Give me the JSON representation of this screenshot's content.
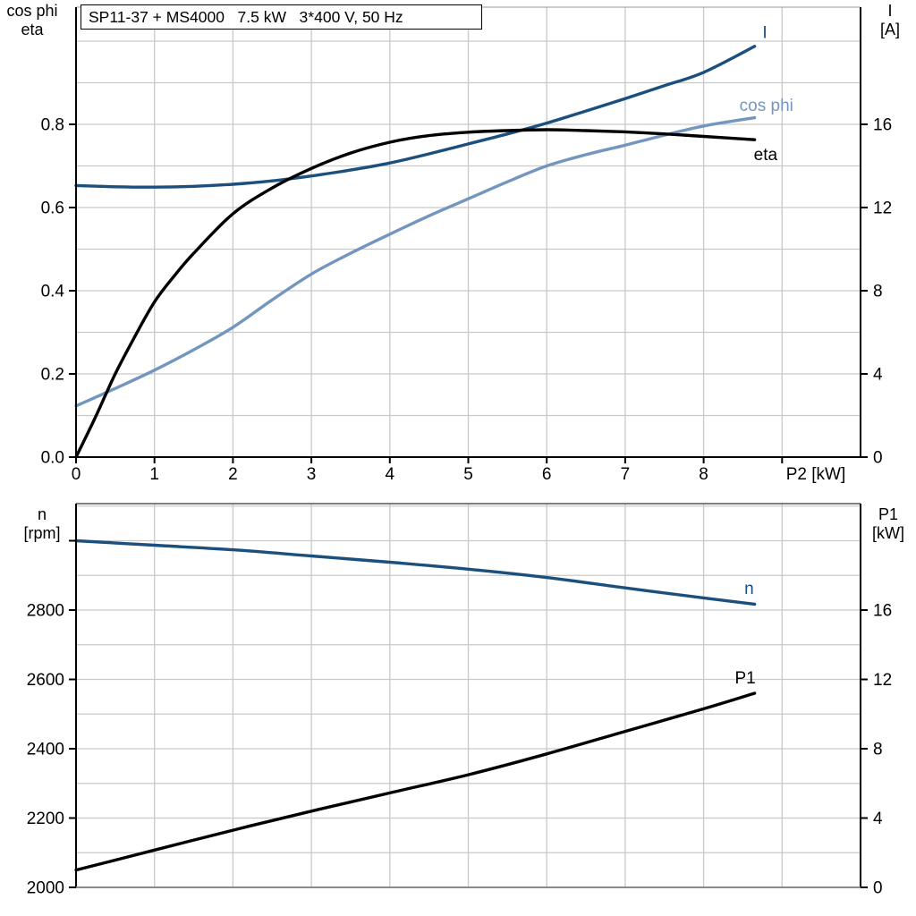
{
  "chart_data": [
    {
      "type": "line",
      "title": "SP11-37 + MS4000   7.5 kW   3*400 V, 50 Hz",
      "x": {
        "label": "P2 [kW]",
        "min": 0,
        "max": 10,
        "tick_values": [
          0,
          1,
          2,
          3,
          4,
          5,
          6,
          7,
          8
        ],
        "tick_labels": [
          "0",
          "1",
          "2",
          "3",
          "4",
          "5",
          "6",
          "7",
          "8"
        ],
        "unlabeled_ticks": [
          9
        ],
        "grid_step": 1
      },
      "y_left": {
        "unit_lines": [
          "cos phi",
          "eta"
        ],
        "min": 0,
        "max": 1.08,
        "tick_values": [
          0,
          0.2,
          0.4,
          0.6,
          0.8
        ],
        "tick_labels": [
          "0.0",
          "0.2",
          "0.4",
          "0.6",
          "0.8"
        ],
        "grid_step": 0.1
      },
      "y_right": {
        "unit_lines": [
          "I",
          "[A]"
        ],
        "min": 0,
        "max": 21.6,
        "tick_values": [
          0,
          4,
          8,
          12,
          16
        ],
        "tick_labels": [
          "0",
          "4",
          "8",
          "12",
          "16"
        ]
      },
      "grid": true,
      "legend_position": "inline-curve-labels",
      "series": [
        {
          "name": "I",
          "axis": "right",
          "color": "#1b4f7d",
          "label": "I",
          "label_pos": [
            8.78,
            20.4
          ],
          "points": [
            [
              0,
              13.06
            ],
            [
              0.5,
              13.0
            ],
            [
              1,
              12.98
            ],
            [
              1.5,
              13.02
            ],
            [
              2,
              13.12
            ],
            [
              2.5,
              13.28
            ],
            [
              3,
              13.52
            ],
            [
              3.5,
              13.8
            ],
            [
              4,
              14.14
            ],
            [
              4.5,
              14.58
            ],
            [
              5,
              15.06
            ],
            [
              5.5,
              15.54
            ],
            [
              6,
              16.06
            ],
            [
              6.5,
              16.64
            ],
            [
              7,
              17.24
            ],
            [
              7.5,
              17.86
            ],
            [
              8,
              18.5
            ],
            [
              8.65,
              19.75
            ]
          ]
        },
        {
          "name": "cos phi",
          "axis": "left",
          "color": "#7396be",
          "label": "cos phi",
          "label_pos": [
            8.8,
            0.845
          ],
          "points": [
            [
              0,
              0.123
            ],
            [
              0.5,
              0.165
            ],
            [
              1,
              0.209
            ],
            [
              1.5,
              0.258
            ],
            [
              2,
              0.312
            ],
            [
              2.5,
              0.378
            ],
            [
              3,
              0.44
            ],
            [
              3.5,
              0.49
            ],
            [
              4,
              0.536
            ],
            [
              4.5,
              0.58
            ],
            [
              5,
              0.621
            ],
            [
              5.5,
              0.662
            ],
            [
              6,
              0.7
            ],
            [
              6.5,
              0.727
            ],
            [
              7,
              0.75
            ],
            [
              7.5,
              0.774
            ],
            [
              8,
              0.796
            ],
            [
              8.65,
              0.816
            ]
          ]
        },
        {
          "name": "eta",
          "axis": "left",
          "color": "#000000",
          "label": "eta",
          "label_pos": [
            8.79,
            0.727
          ],
          "points": [
            [
              0,
              0
            ],
            [
              0.25,
              0.097
            ],
            [
              0.5,
              0.2
            ],
            [
              0.75,
              0.29
            ],
            [
              1,
              0.373
            ],
            [
              1.25,
              0.435
            ],
            [
              1.5,
              0.49
            ],
            [
              2,
              0.585
            ],
            [
              2.5,
              0.647
            ],
            [
              3,
              0.694
            ],
            [
              3.5,
              0.731
            ],
            [
              4,
              0.757
            ],
            [
              4.5,
              0.773
            ],
            [
              5,
              0.781
            ],
            [
              5.5,
              0.785
            ],
            [
              6,
              0.787
            ],
            [
              6.5,
              0.785
            ],
            [
              7,
              0.782
            ],
            [
              7.5,
              0.777
            ],
            [
              8,
              0.771
            ],
            [
              8.65,
              0.763
            ]
          ]
        }
      ]
    },
    {
      "type": "line",
      "title": "",
      "x": {
        "label": "",
        "min": 0,
        "max": 10,
        "tick_values": [],
        "tick_labels": [],
        "unlabeled_ticks": [],
        "grid_step": 1
      },
      "y_left": {
        "unit_lines": [
          "n",
          "[rpm]"
        ],
        "min": 2000,
        "max": 3107,
        "tick_values": [
          2000,
          2200,
          2400,
          2600,
          2800,
          3000
        ],
        "tick_labels": [
          "2000",
          "2200",
          "2400",
          "2600",
          "2800",
          ""
        ],
        "grid_step": 100
      },
      "y_right": {
        "unit_lines": [
          "P1",
          "[kW]"
        ],
        "min": 0,
        "max": 22.1,
        "tick_values": [
          0,
          4,
          8,
          12,
          16
        ],
        "tick_labels": [
          "0",
          "4",
          "8",
          "12",
          "16"
        ]
      },
      "grid": true,
      "legend_position": "inline-curve-labels",
      "series": [
        {
          "name": "n",
          "axis": "left",
          "color": "#1b4f7d",
          "label": "n",
          "label_pos": [
            8.58,
            2862
          ],
          "points": [
            [
              0,
              3000
            ],
            [
              1,
              2987
            ],
            [
              2,
              2974
            ],
            [
              3,
              2956
            ],
            [
              4,
              2938
            ],
            [
              5,
              2918
            ],
            [
              6,
              2894
            ],
            [
              7,
              2864
            ],
            [
              8,
              2835
            ],
            [
              8.65,
              2817
            ]
          ]
        },
        {
          "name": "P1",
          "axis": "right",
          "color": "#000000",
          "label": "P1",
          "label_pos": [
            8.53,
            12.08
          ],
          "points": [
            [
              0,
              1.0
            ],
            [
              1,
              2.15
            ],
            [
              2,
              3.3
            ],
            [
              3,
              4.4
            ],
            [
              4,
              5.45
            ],
            [
              5,
              6.5
            ],
            [
              6,
              7.7
            ],
            [
              7,
              9.0
            ],
            [
              8,
              10.3
            ],
            [
              8.65,
              11.2
            ]
          ]
        }
      ]
    }
  ],
  "colors": {
    "curve_dark_blue": "#1b4f7d",
    "curve_light_blue": "#7396be",
    "curve_black": "#000000",
    "gridline": "#c9c9c9",
    "axis": "#000000",
    "bottom_frame": "#8a8a8a"
  }
}
